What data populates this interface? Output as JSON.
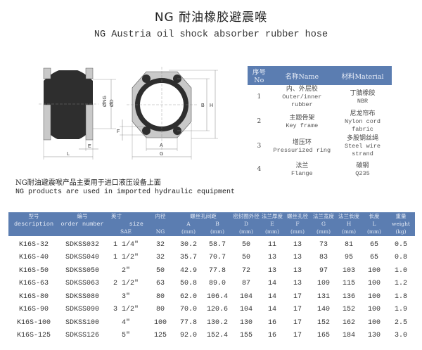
{
  "header": {
    "title": "NG 耐油橡胶避震喉",
    "subtitle": "NG Austria oil shock absorber rubber hose"
  },
  "diagram": {
    "labels": {
      "ng": "ØNG",
      "d": "ØD",
      "e": "E",
      "l": "L",
      "f": "F",
      "a": "A",
      "g": "G",
      "b": "B",
      "h": "H"
    }
  },
  "materials": {
    "headers": [
      "序号No",
      "名称Name",
      "材料Material"
    ],
    "rows": [
      {
        "no": "1",
        "name_cn": "内、外层胶",
        "name_en": "Outer/inner rubber",
        "mat_cn": "丁腈橡胶",
        "mat_en": "NBR"
      },
      {
        "no": "2",
        "name_cn": "主题骨架",
        "name_en": "Key frame",
        "mat_cn": "尼龙帘布",
        "mat_en": "Nylon cord fabric"
      },
      {
        "no": "3",
        "name_cn": "增压环",
        "name_en": "Pressurized ring",
        "mat_cn": "多股钢丝绳",
        "mat_en": "Steel wire strand"
      },
      {
        "no": "4",
        "name_cn": "法兰",
        "name_en": "Flange",
        "mat_cn": "碳钢",
        "mat_en": "Q235"
      }
    ]
  },
  "notes": {
    "cn": "NG耐油避震喉产品主要用于进口液压设备上面",
    "en": "NG products are used in imported hydraulic equipment"
  },
  "spec_table": {
    "header": {
      "desc_cn": "型号",
      "desc_en": "description",
      "order_cn": "编号",
      "order_en": "order number",
      "size_cn": "英寸",
      "size_en": "size",
      "size_unit": "SAE",
      "ng_cn": "内径",
      "ng_unit": "NG",
      "ab_cn": "螺丝孔间距",
      "a": "A",
      "b": "B",
      "d_cn": "密封圈外径",
      "d": "D",
      "e_cn": "法兰厚度",
      "e": "E",
      "f_cn": "螺丝孔径",
      "f": "F",
      "g_cn": "法兰宽度",
      "g": "G",
      "h_cn": "法兰长度",
      "h": "H",
      "l_cn": "长度",
      "l": "L",
      "w_cn": "重量",
      "w_en": "weight",
      "w_unit": "(kg)",
      "mm": "(mm)"
    },
    "rows": [
      [
        "K16S-32",
        "SDKSS032",
        "1 1/4\"",
        "32",
        "30.2",
        "58.7",
        "50",
        "11",
        "13",
        "73",
        "81",
        "65",
        "0.5"
      ],
      [
        "K16S-40",
        "SDKSS040",
        "1 1/2\"",
        "32",
        "35.7",
        "70.7",
        "50",
        "13",
        "13",
        "83",
        "95",
        "65",
        "0.8"
      ],
      [
        "K16S-50",
        "SDKSS050",
        "2\"",
        "50",
        "42.9",
        "77.8",
        "72",
        "13",
        "13",
        "97",
        "103",
        "100",
        "1.0"
      ],
      [
        "K16S-63",
        "SDKSS063",
        "2 1/2\"",
        "63",
        "50.8",
        "89.0",
        "87",
        "14",
        "13",
        "109",
        "115",
        "100",
        "1.2"
      ],
      [
        "K16S-80",
        "SDKSS080",
        "3\"",
        "80",
        "62.0",
        "106.4",
        "104",
        "14",
        "17",
        "131",
        "136",
        "100",
        "1.8"
      ],
      [
        "K16S-90",
        "SDKSS090",
        "3 1/2\"",
        "80",
        "70.0",
        "120.6",
        "104",
        "14",
        "17",
        "140",
        "152",
        "100",
        "1.9"
      ],
      [
        "K16S-100",
        "SDKSS100",
        "4\"",
        "100",
        "77.8",
        "130.2",
        "130",
        "16",
        "17",
        "152",
        "162",
        "100",
        "2.5"
      ],
      [
        "K16S-125",
        "SDKSS126",
        "5\"",
        "125",
        "92.0",
        "152.4",
        "155",
        "16",
        "17",
        "165",
        "184",
        "130",
        "3.0"
      ]
    ]
  },
  "colors": {
    "header_bg": "#5b7db1",
    "rubber": "#2e2e2e",
    "flange": "#c9c9c9"
  }
}
